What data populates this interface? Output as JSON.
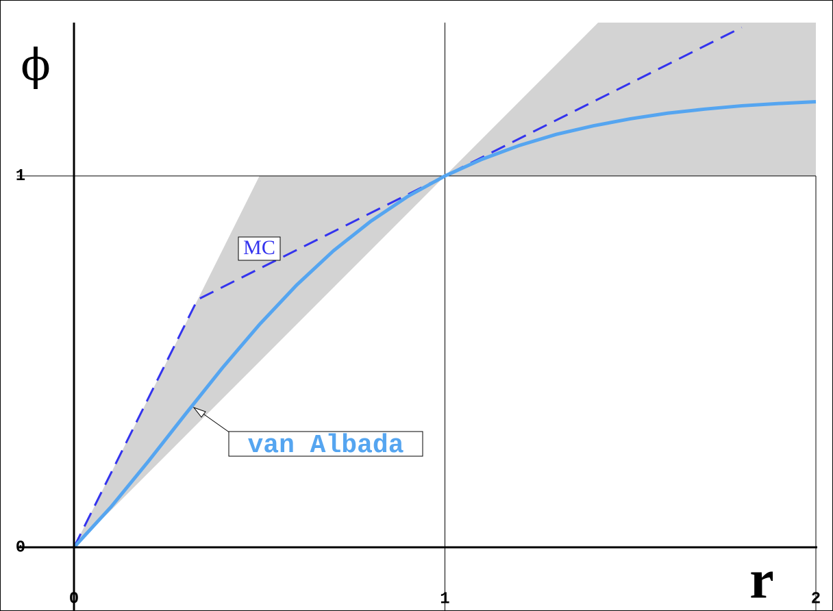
{
  "chart_data": {
    "type": "line",
    "x_label": "r",
    "y_label": "ϕ",
    "xlim": [
      0,
      2
    ],
    "ylim": [
      0,
      1.413
    ],
    "xticks": [
      0,
      1,
      2
    ],
    "yticks": [
      0,
      1
    ],
    "grid": true,
    "region": {
      "color": "#d3d3d3",
      "x": [
        0,
        0.5,
        1,
        2
      ],
      "lower": [
        0,
        0.5,
        1,
        1
      ],
      "upper": [
        0,
        1,
        1,
        2
      ]
    },
    "series": [
      {
        "name": "MC",
        "color": "#3333ee",
        "dashed": true,
        "x": [
          0,
          0.333,
          1.8
        ],
        "values": [
          0,
          0.667,
          1.4
        ]
      },
      {
        "name": "van Albada",
        "color": "#55a5f0",
        "dashed": false,
        "x": [
          0,
          0.1,
          0.2,
          0.3,
          0.4,
          0.5,
          0.6,
          0.7,
          0.8,
          0.9,
          1,
          1.1,
          1.2,
          1.3,
          1.4,
          1.5,
          1.6,
          1.7,
          1.8,
          1.9,
          2
        ],
        "values": [
          0,
          0.109,
          0.231,
          0.358,
          0.483,
          0.6,
          0.706,
          0.799,
          0.878,
          0.945,
          1,
          1.045,
          1.082,
          1.112,
          1.135,
          1.154,
          1.169,
          1.18,
          1.189,
          1.195,
          1.2
        ]
      }
    ]
  }
}
